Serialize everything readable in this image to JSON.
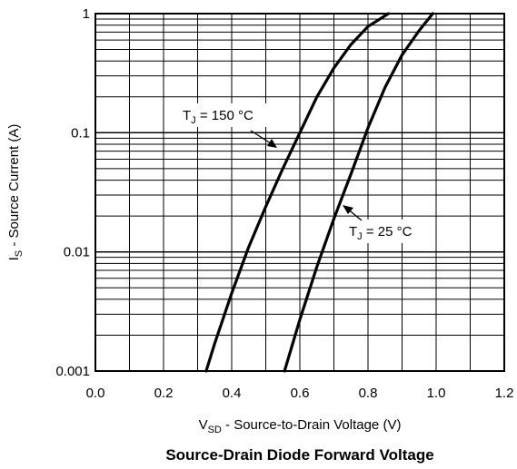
{
  "chart_data": {
    "type": "line",
    "title": "Source-Drain Diode Forward Voltage",
    "xlabel": {
      "main": "V",
      "sub": "SD",
      "rest": " - Source-to-Drain Voltage (V)"
    },
    "ylabel": {
      "main": "I",
      "sub": "S",
      "rest": " - Source Current (A)"
    },
    "xlim": [
      0.0,
      1.2
    ],
    "ylim": [
      0.001,
      1
    ],
    "yscale": "log",
    "grid": true,
    "x_ticks": [
      "0.0",
      "0.2",
      "0.4",
      "0.6",
      "0.8",
      "1.0",
      "1.2"
    ],
    "y_ticks": [
      "0.001",
      "0.01",
      "0.1",
      "1"
    ],
    "series": [
      {
        "name": {
          "main": "T",
          "sub": "J",
          "rest": " = 150 °C"
        },
        "x": [
          0.325,
          0.35,
          0.4,
          0.45,
          0.5,
          0.55,
          0.6,
          0.65,
          0.7,
          0.75,
          0.8,
          0.86
        ],
        "y": [
          0.001,
          0.0017,
          0.0045,
          0.011,
          0.024,
          0.05,
          0.1,
          0.2,
          0.35,
          0.55,
          0.78,
          1.0
        ]
      },
      {
        "name": {
          "main": "T",
          "sub": "J",
          "rest": " = 25 °C"
        },
        "x": [
          0.555,
          0.6,
          0.65,
          0.7,
          0.75,
          0.8,
          0.85,
          0.9,
          0.95,
          0.99
        ],
        "y": [
          0.001,
          0.0027,
          0.0075,
          0.019,
          0.045,
          0.11,
          0.24,
          0.45,
          0.72,
          1.0
        ]
      }
    ]
  }
}
